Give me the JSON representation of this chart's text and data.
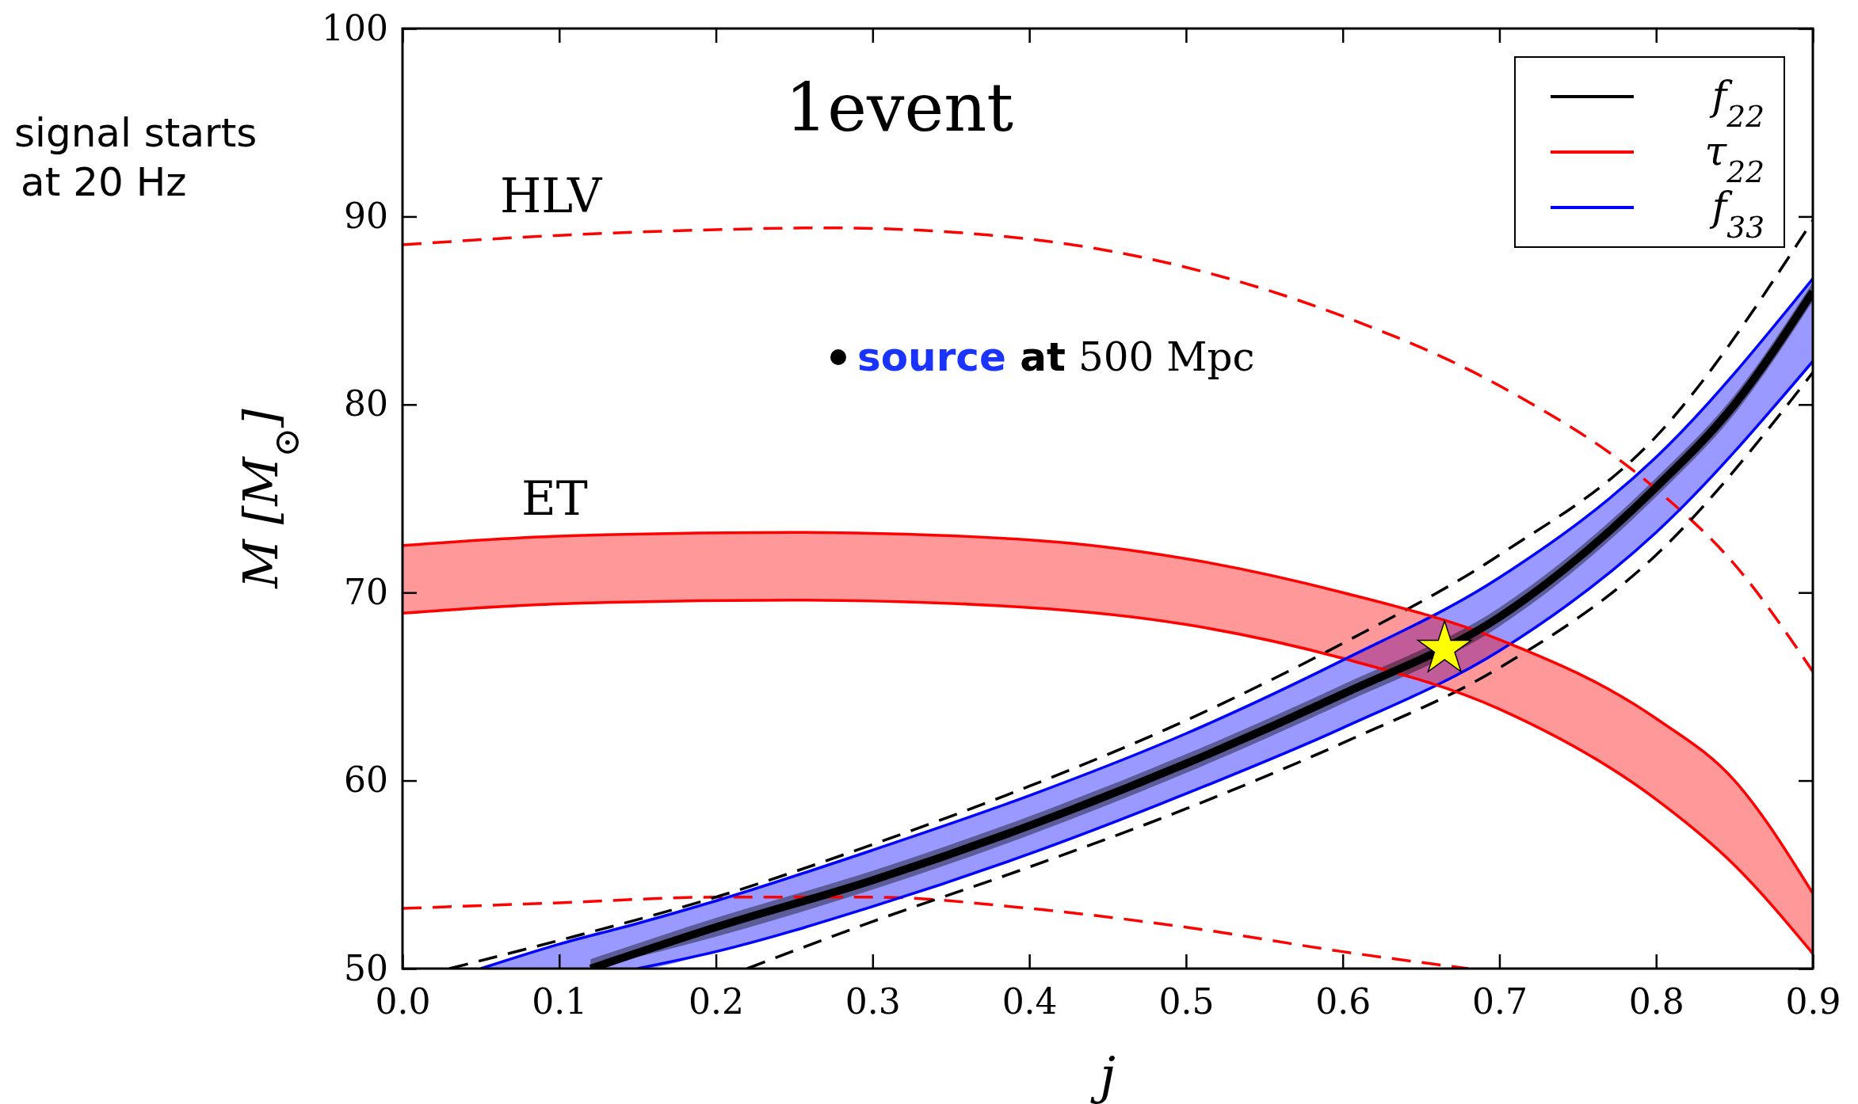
{
  "chart_data": {
    "type": "line",
    "xlabel": "j",
    "ylabel": "M [M$_{⊙}$]",
    "xlim": [
      0,
      0.9
    ],
    "ylim": [
      50,
      100
    ],
    "xticks": [
      {
        "value": 0,
        "label": "0.0"
      },
      {
        "value": 0.1,
        "label": "0.1"
      },
      {
        "value": 0.2,
        "label": "0.2"
      },
      {
        "value": 0.3,
        "label": "0.3"
      },
      {
        "value": 0.4,
        "label": "0.4"
      },
      {
        "value": 0.5,
        "label": "0.5"
      },
      {
        "value": 0.6,
        "label": "0.6"
      },
      {
        "value": 0.7,
        "label": "0.7"
      },
      {
        "value": 0.8,
        "label": "0.8"
      },
      {
        "value": 0.9,
        "label": "0.9"
      }
    ],
    "yticks": [
      50,
      60,
      70,
      80,
      90,
      100
    ],
    "grid": false,
    "legend": "top right",
    "annotations": [
      "1event",
      "HLV",
      "ET",
      "source at 500 Mpc",
      "signal starts at 20 Hz"
    ],
    "series": [
      {
        "name": "f$_{22}$",
        "color": "#000000",
        "x": [
          0.12,
          0.2,
          0.3,
          0.4,
          0.5,
          0.6,
          0.7,
          0.8,
          0.85,
          0.9
        ],
        "values": [
          50,
          52.2,
          54.7,
          57.6,
          60.9,
          64.6,
          68.7,
          75.6,
          80,
          86
        ],
        "lower": [
          50,
          51.7,
          54.2,
          57.1,
          60.4,
          64.1,
          68.2,
          75.1,
          79.5,
          85.5
        ],
        "upper": [
          50.5,
          52.7,
          55.2,
          58.1,
          61.4,
          65.1,
          69.2,
          76.1,
          80.5,
          86.5
        ]
      },
      {
        "name": "τ$_{22}$",
        "color": "#ff0000",
        "x": [
          0,
          0.1,
          0.25,
          0.4,
          0.5,
          0.6,
          0.7,
          0.8,
          0.85,
          0.9
        ],
        "values": [
          72.5,
          73,
          73.2,
          72.8,
          71.8,
          70,
          67.5,
          63.3,
          60,
          54
        ],
        "lower": [
          68.9,
          69.4,
          69.6,
          69.2,
          68.3,
          66.5,
          63.8,
          59,
          55.5,
          50.8
        ],
        "upper": [
          72.5,
          73,
          73.2,
          72.8,
          71.8,
          70,
          67.5,
          63.3,
          60,
          54
        ]
      },
      {
        "name": "f$_{33}$",
        "color": "#0000ff",
        "x": [
          0.05,
          0.1,
          0.15,
          0.2,
          0.3,
          0.4,
          0.5,
          0.6,
          0.7,
          0.8,
          0.9
        ],
        "values": [
          50,
          51.3,
          52.4,
          53.6,
          56.3,
          59.2,
          62.5,
          66.4,
          70.8,
          77.2,
          86.7
        ],
        "lower": [
          50,
          50,
          50,
          50.9,
          53.3,
          56.1,
          59.3,
          62.8,
          66.9,
          73.2,
          82.3
        ],
        "upper": [
          50,
          51.3,
          52.4,
          53.6,
          56.3,
          59.2,
          62.5,
          66.4,
          70.8,
          77.2,
          86.7
        ]
      },
      {
        "color": "#ff0000",
        "x": [
          0,
          0.1,
          0.25,
          0.4,
          0.5,
          0.6,
          0.7,
          0.8,
          0.85,
          0.9
        ],
        "values": [
          68.9,
          69.4,
          69.6,
          69.2,
          68.3,
          66.5,
          63.8,
          59,
          55.5,
          50.8
        ]
      },
      {
        "color": "#0000ff",
        "x": [
          0.15,
          0.2,
          0.3,
          0.4,
          0.5,
          0.6,
          0.7,
          0.8,
          0.9
        ],
        "values": [
          50,
          50.9,
          53.3,
          56.1,
          59.3,
          62.8,
          66.9,
          73.2,
          82.3
        ]
      },
      {
        "color": "#000000",
        "line_style": "dashed",
        "x": [
          0.03,
          0.1,
          0.2,
          0.3,
          0.4,
          0.5,
          0.6,
          0.7,
          0.8,
          0.9
        ],
        "values": [
          50,
          51.5,
          53.8,
          56.6,
          59.7,
          63.2,
          67.3,
          72,
          78.3,
          89.8
        ]
      },
      {
        "color": "#000000",
        "line_style": "dashed",
        "x": [
          0.22,
          0.3,
          0.4,
          0.5,
          0.6,
          0.7,
          0.8,
          0.9
        ],
        "values": [
          50,
          52.5,
          55.4,
          58.5,
          62,
          66,
          72,
          81.7
        ]
      },
      {
        "color": "#ff0000",
        "line_style": "dashed",
        "x": [
          0,
          0.1,
          0.2,
          0.27,
          0.4,
          0.5,
          0.6,
          0.7,
          0.8,
          0.85,
          0.9
        ],
        "values": [
          88.5,
          89,
          89.3,
          89.4,
          88.8,
          87.3,
          84.7,
          81,
          75.5,
          71.5,
          65.8
        ]
      },
      {
        "color": "#ff0000",
        "line_style": "dashed",
        "x": [
          0,
          0.1,
          0.2,
          0.3,
          0.4,
          0.5,
          0.6,
          0.68
        ],
        "values": [
          53.2,
          53.5,
          53.8,
          53.8,
          53.2,
          52.2,
          50.9,
          50
        ]
      },
      {
        "type": "scatter",
        "marker": "star",
        "color": "#ffff00",
        "x": [
          0.665
        ],
        "values": [
          67
        ]
      }
    ]
  }
}
